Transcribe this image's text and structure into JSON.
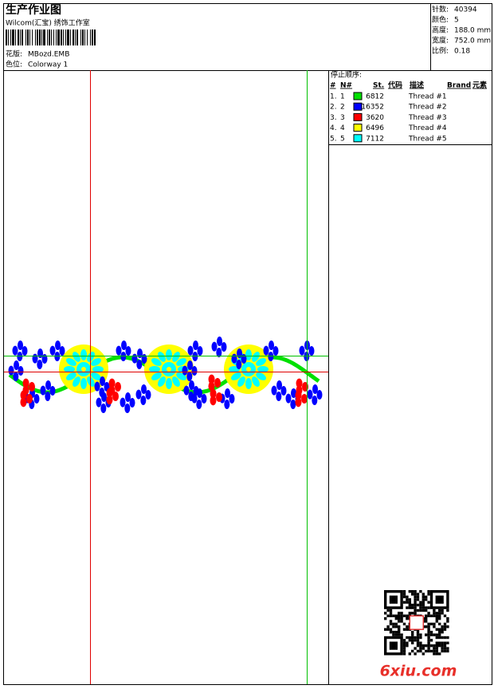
{
  "header": {
    "title": "生产作业图",
    "subtitle": "Wilcom(汇宝) 绣饰工作室",
    "design_label": "花版:",
    "design": "MBozd.EMB",
    "colorway_label": "色位:",
    "colorway": "Colorway 1"
  },
  "summary": [
    {
      "label": "针数:",
      "value": "40394"
    },
    {
      "label": "颜色:",
      "value": "5"
    },
    {
      "label": "高度:",
      "value": "188.0 mm"
    },
    {
      "label": "宽度:",
      "value": "752.0 mm"
    },
    {
      "label": "比例:",
      "value": "0.18"
    }
  ],
  "stop_sequence": {
    "title": "停止顺序:",
    "columns": [
      "#",
      "N#",
      "St.",
      "代码",
      "描述",
      "Brand",
      "元素"
    ],
    "rows": [
      {
        "index": "1.",
        "n": "1",
        "color": "#00e000",
        "stitches": 6812,
        "description": "Thread #1"
      },
      {
        "index": "2.",
        "n": "2",
        "color": "#0000ff",
        "stitches": 16352,
        "description": "Thread #2"
      },
      {
        "index": "3.",
        "n": "3",
        "color": "#ff0000",
        "stitches": 3620,
        "description": "Thread #3"
      },
      {
        "index": "4.",
        "n": "4",
        "color": "#ffff00",
        "stitches": 6496,
        "description": "Thread #4"
      },
      {
        "index": "5.",
        "n": "5",
        "color": "#00ffff",
        "stitches": 7112,
        "description": "Thread #5"
      }
    ]
  },
  "watermark": "6xiu.com"
}
